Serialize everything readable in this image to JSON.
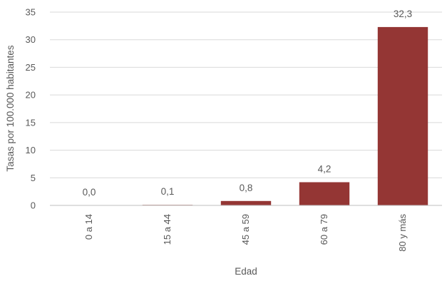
{
  "chart_data": {
    "type": "bar",
    "categories": [
      "0 a 14",
      "15 a 44",
      "45 a 59",
      "60 a 79",
      "80 y más"
    ],
    "values": [
      0.0,
      0.1,
      0.8,
      4.2,
      32.3
    ],
    "data_labels": [
      "0,0",
      "0,1",
      "0,8",
      "4,2",
      "32,3"
    ],
    "xlabel": "Edad",
    "ylabel": "Tasas por 100.000 habitantes",
    "ylim": [
      0,
      35
    ],
    "yticks": [
      0,
      5,
      10,
      15,
      20,
      25,
      30,
      35
    ],
    "grid": true,
    "legend": "none",
    "bar_color": "#943634",
    "grid_color": "#d9d9d9",
    "axis_color": "#bfbfbf",
    "text_color": "#595959"
  }
}
